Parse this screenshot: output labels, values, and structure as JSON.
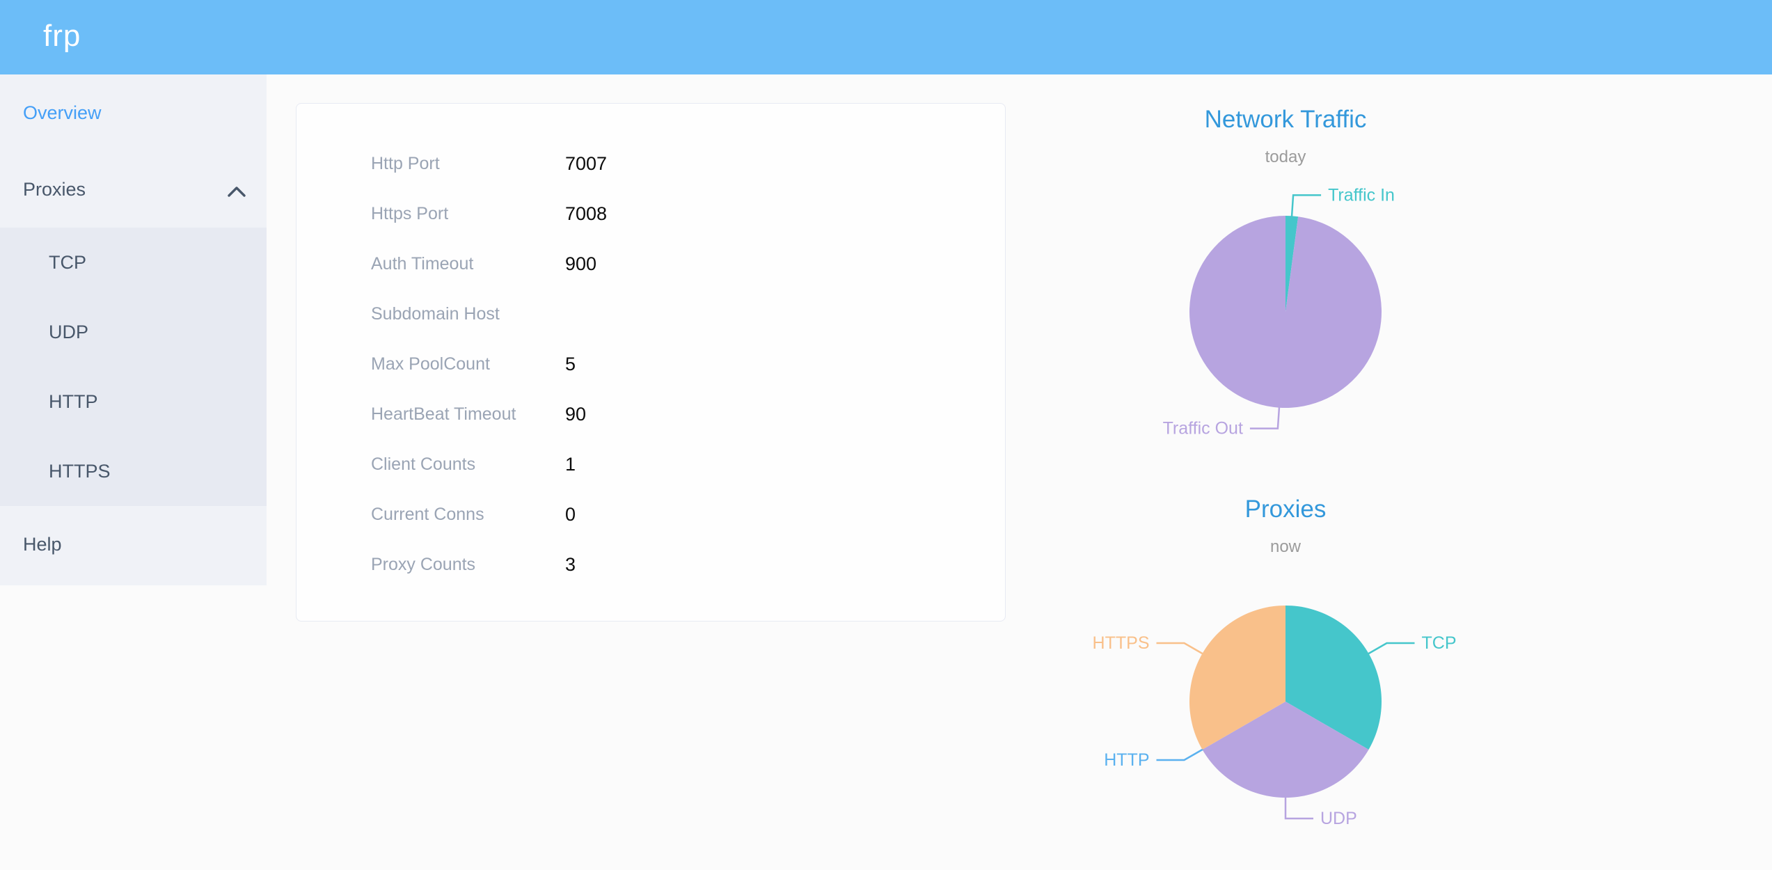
{
  "header": {
    "logo": "frp",
    "background_color": "#6cbdf8"
  },
  "sidebar": {
    "overview": {
      "label": "Overview",
      "active": true
    },
    "proxies": {
      "label": "Proxies",
      "expanded": true,
      "children": [
        {
          "label": "TCP"
        },
        {
          "label": "UDP"
        },
        {
          "label": "HTTP"
        },
        {
          "label": "HTTPS"
        }
      ]
    },
    "help": {
      "label": "Help"
    },
    "text_color": "#48576a",
    "active_color": "#449ff7",
    "background_color": "#f0f2f7",
    "submenu_background_color": "#e7eaf2"
  },
  "server_info": {
    "rows": [
      {
        "label": "Http Port",
        "value": "7007"
      },
      {
        "label": "Https Port",
        "value": "7008"
      },
      {
        "label": "Auth Timeout",
        "value": "900"
      },
      {
        "label": "Subdomain Host",
        "value": ""
      },
      {
        "label": "Max PoolCount",
        "value": "5"
      },
      {
        "label": "HeartBeat Timeout",
        "value": "90"
      },
      {
        "label": "Client Counts",
        "value": "1"
      },
      {
        "label": "Current Conns",
        "value": "0"
      },
      {
        "label": "Proxy Counts",
        "value": "3"
      }
    ],
    "label_color": "#9aa4b4",
    "value_color": "#0c0c0c"
  },
  "chart_data": [
    {
      "type": "pie",
      "title": "Network Traffic",
      "subtitle": "today",
      "legend": false,
      "labels": "outside-with-leader-lines",
      "values_are": "estimated percent of circle",
      "series": [
        {
          "name": "Traffic In",
          "value": 2.1,
          "color": "#45c6cb"
        },
        {
          "name": "Traffic Out",
          "value": 97.9,
          "color": "#b7a4e0"
        }
      ]
    },
    {
      "type": "pie",
      "title": "Proxies",
      "subtitle": "now",
      "legend": false,
      "labels": "outside-with-leader-lines",
      "values_are": "proxy count per type",
      "series": [
        {
          "name": "TCP",
          "value": 1,
          "color": "#45c6cb"
        },
        {
          "name": "UDP",
          "value": 1,
          "color": "#b7a4e0"
        },
        {
          "name": "HTTP",
          "value": 0,
          "color": "#5ab1ef"
        },
        {
          "name": "HTTPS",
          "value": 1,
          "color": "#f9c08a"
        }
      ]
    }
  ],
  "colors": {
    "chart_title": "#3398db",
    "chart_subtitle": "#9b9b9b",
    "page_background": "#fbfbfb",
    "card_border": "#e7eaf3",
    "chevron": "#48576a"
  }
}
